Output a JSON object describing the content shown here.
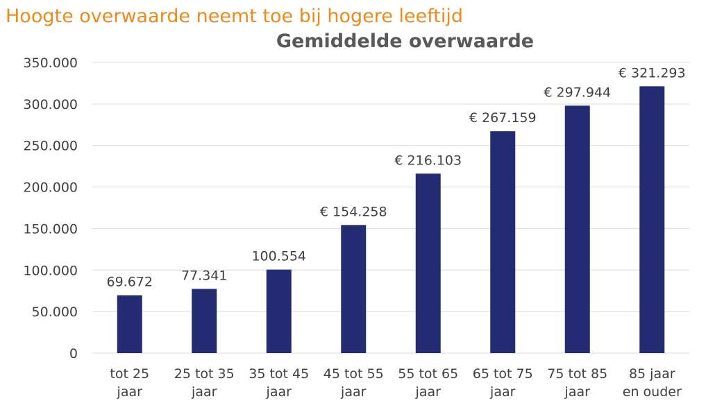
{
  "headline": "Hoogte overwaarde neemt toe bij hogere leeftijd",
  "colors": {
    "headline": "#ec8a1c",
    "bar": "#232c72",
    "grid": "#d9d9d9",
    "text": "#404040",
    "title": "#595959"
  },
  "chart_data": {
    "type": "bar",
    "title": "Gemiddelde overwaarde",
    "xlabel": "",
    "ylabel": "",
    "ylim": [
      0,
      350000
    ],
    "yticks": [
      0,
      50000,
      100000,
      150000,
      200000,
      250000,
      300000,
      350000
    ],
    "ytick_labels": [
      "0",
      "50.000",
      "100.000",
      "150.000",
      "200.000",
      "250.000",
      "300.000",
      "350.000"
    ],
    "grid": true,
    "legend": "none",
    "categories": [
      [
        "tot 25",
        "jaar"
      ],
      [
        "25 tot 35",
        "jaar"
      ],
      [
        "35 tot 45",
        "jaar"
      ],
      [
        "45 tot 55",
        "jaar"
      ],
      [
        "55 tot 65",
        "jaar"
      ],
      [
        "65 tot 75",
        "jaar"
      ],
      [
        "75 tot 85",
        "jaar"
      ],
      [
        "85 jaar",
        "en ouder"
      ]
    ],
    "values": [
      69672,
      77341,
      100554,
      154258,
      216103,
      267159,
      297944,
      321293
    ],
    "data_labels": [
      "69.672",
      "77.341",
      "100.554",
      "€ 154.258",
      "€ 216.103",
      "€ 267.159",
      "€ 297.944",
      "€ 321.293"
    ]
  }
}
